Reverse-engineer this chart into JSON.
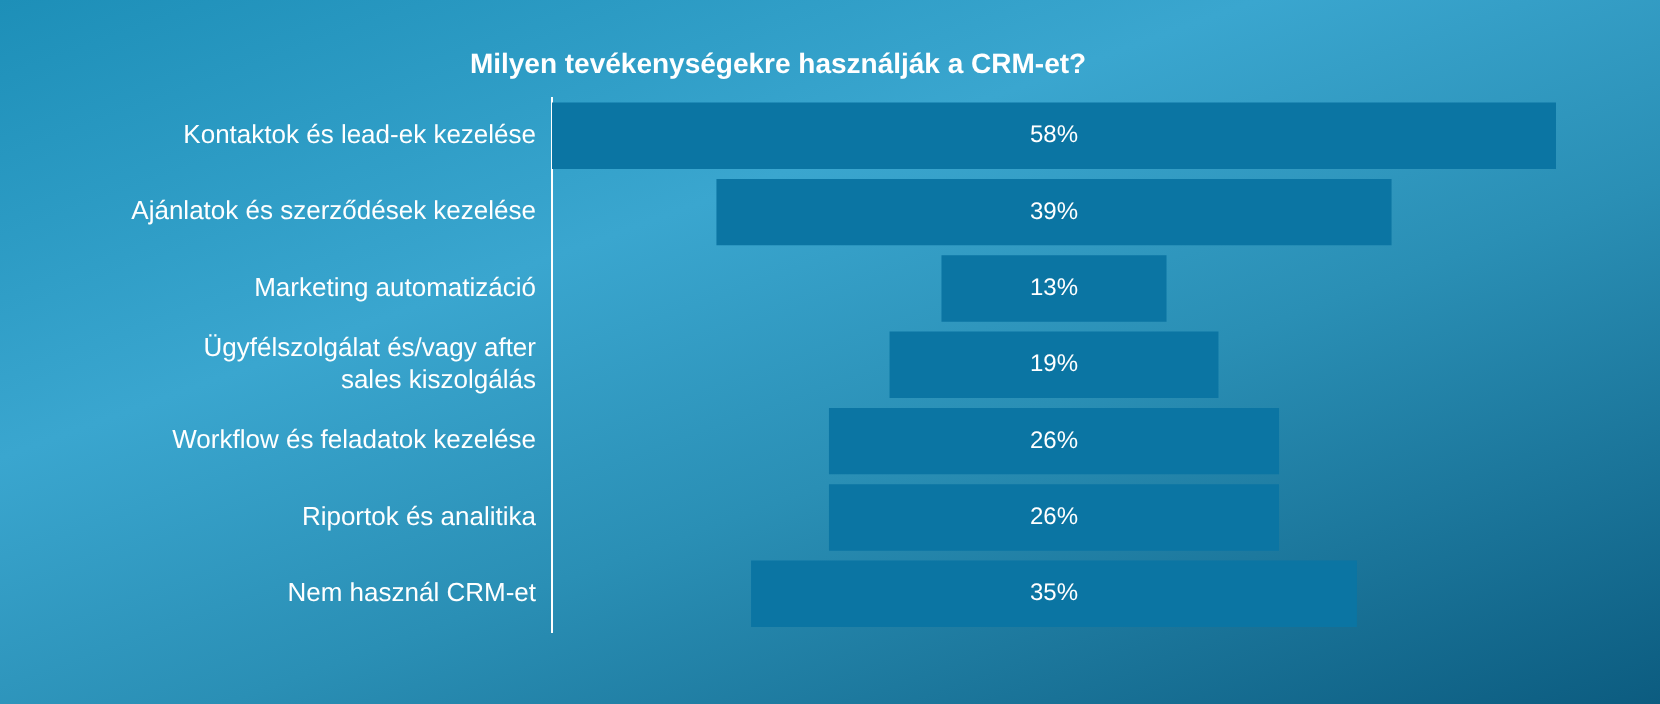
{
  "chart_data": {
    "type": "other",
    "title": "Milyen tevékenységekre használják a CRM-et?",
    "categories": [
      "Kontaktok és lead-ek kezelése",
      "Ajánlatok és szerződések kezelése",
      "Marketing automatizáció",
      "Ügyfélszolgálat és/vagy after sales kiszolgálás",
      "Workflow és feladatok kezelése",
      "Riportok és analitika",
      "Nem használ CRM-et"
    ],
    "values": [
      58,
      39,
      13,
      19,
      26,
      26,
      35
    ],
    "value_labels": [
      "58%",
      "39%",
      "13%",
      "19%",
      "26%",
      "26%",
      "35%"
    ],
    "color": "#0b75a3"
  }
}
